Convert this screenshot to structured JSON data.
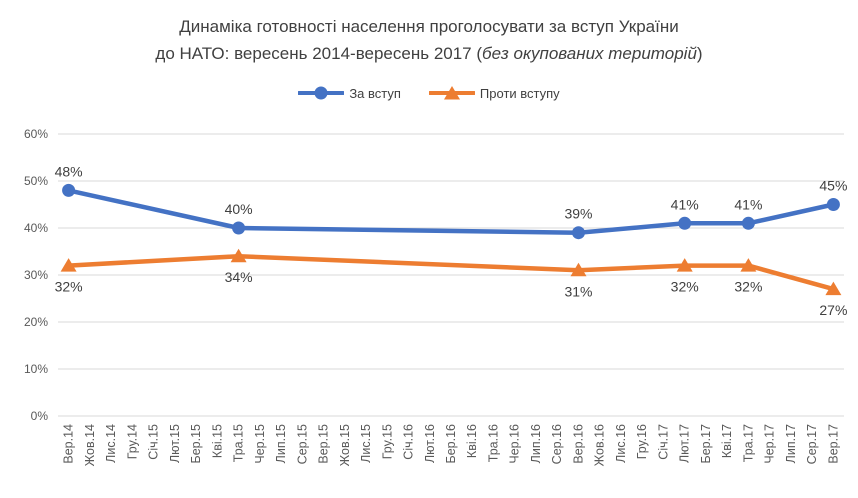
{
  "title": {
    "line1": "Динаміка готовності населення проголосувати за вступ України",
    "line2_prefix": "до НАТО: вересень 2014-вересень 2017 (",
    "line2_italic": "без окупованих територій",
    "line2_suffix": ")"
  },
  "legend": {
    "items": [
      {
        "label": "За вступ",
        "color": "#4472C4",
        "marker": "circle"
      },
      {
        "label": "Проти вступу",
        "color": "#ED7D31",
        "marker": "triangle"
      }
    ]
  },
  "chart_data": {
    "type": "line",
    "title": "Динаміка готовності населення проголосувати за вступ України до НАТО: вересень 2014-вересень 2017 (без окупованих територій)",
    "categories": [
      "Вер.14",
      "Жов.14",
      "Лис.14",
      "Гру.14",
      "Січ.15",
      "Лют.15",
      "Бер.15",
      "Кві.15",
      "Тра.15",
      "Чер.15",
      "Лип.15",
      "Сер.15",
      "Вер.15",
      "Жов.15",
      "Лис.15",
      "Гру.15",
      "Січ.16",
      "Лют.16",
      "Бер.16",
      "Кві.16",
      "Тра.16",
      "Чер.16",
      "Лип.16",
      "Сер.16",
      "Вер.16",
      "Жов.16",
      "Лис.16",
      "Гру.16",
      "Січ.17",
      "Лют.17",
      "Бер.17",
      "Кві.17",
      "Тра.17",
      "Чер.17",
      "Лип.17",
      "Сер.17",
      "Вер.17"
    ],
    "series": [
      {
        "name": "За вступ",
        "color": "#4472C4",
        "marker": "circle",
        "points": [
          {
            "category": "Вер.14",
            "value": 48,
            "label": "48%",
            "label_position": "above"
          },
          {
            "category": "Тра.15",
            "value": 40,
            "label": "40%",
            "label_position": "above"
          },
          {
            "category": "Вер.16",
            "value": 39,
            "label": "39%",
            "label_position": "above"
          },
          {
            "category": "Лют.17",
            "value": 41,
            "label": "41%",
            "label_position": "above"
          },
          {
            "category": "Тра.17",
            "value": 41,
            "label": "41%",
            "label_position": "above"
          },
          {
            "category": "Вер.17",
            "value": 45,
            "label": "45%",
            "label_position": "above"
          }
        ]
      },
      {
        "name": "Проти вступу",
        "color": "#ED7D31",
        "marker": "triangle",
        "points": [
          {
            "category": "Вер.14",
            "value": 32,
            "label": "32%",
            "label_position": "below"
          },
          {
            "category": "Тра.15",
            "value": 34,
            "label": "34%",
            "label_position": "below"
          },
          {
            "category": "Вер.16",
            "value": 31,
            "label": "31%",
            "label_position": "below"
          },
          {
            "category": "Лют.17",
            "value": 32,
            "label": "32%",
            "label_position": "below"
          },
          {
            "category": "Тра.17",
            "value": 32,
            "label": "32%",
            "label_position": "below"
          },
          {
            "category": "Вер.17",
            "value": 27,
            "label": "27%",
            "label_position": "below"
          }
        ]
      }
    ],
    "ylim": [
      0,
      60
    ],
    "ytick_step": 10,
    "ytick_suffix": "%",
    "ytick_labels": [
      "0%",
      "10%",
      "20%",
      "30%",
      "40%",
      "50%",
      "60%"
    ],
    "grid": true,
    "legend_position": "top",
    "colors": {
      "axis_text": "#595959",
      "gridline": "#D9D9D9",
      "data_label": "#404040",
      "title_text": "#404040"
    }
  }
}
